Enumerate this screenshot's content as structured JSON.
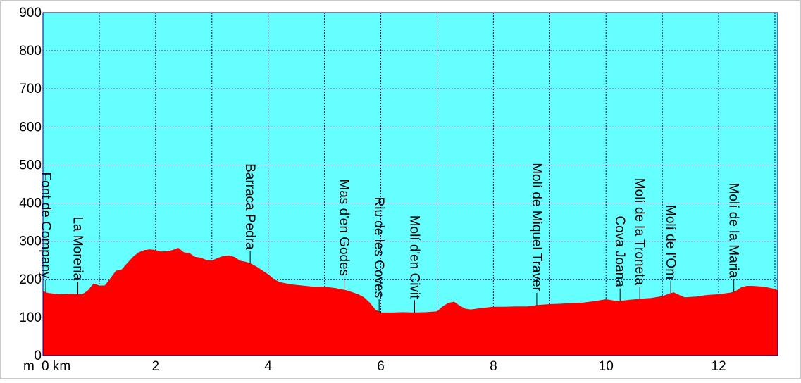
{
  "colors": {
    "background": "#66ffff",
    "fill": "#ff0000",
    "grid": "#000080",
    "frame_outer": "#c8c8c8"
  },
  "chart_data": {
    "type": "area",
    "xlabel": "km",
    "ylabel": "m",
    "xlim": [
      0,
      13.05
    ],
    "ylim": [
      0,
      900
    ],
    "grid": true,
    "xticks": [
      0,
      2,
      4,
      6,
      8,
      10,
      12
    ],
    "xtick_labels": [
      "0 km",
      "2",
      "4",
      "6",
      "8",
      "10",
      "12"
    ],
    "yticks": [
      0,
      100,
      200,
      300,
      400,
      500,
      600,
      700,
      800,
      900
    ],
    "ytick_labels": [
      "0",
      "100",
      "200",
      "300",
      "400",
      "500",
      "600",
      "700",
      "800",
      "900"
    ],
    "series": [
      {
        "x": [
          0,
          0.1,
          0.3,
          0.5,
          0.7,
          0.8,
          0.9,
          1.0,
          1.1,
          1.2,
          1.3,
          1.4,
          1.5,
          1.6,
          1.7,
          1.8,
          1.9,
          2.0,
          2.1,
          2.2,
          2.3,
          2.4,
          2.5,
          2.6,
          2.7,
          2.8,
          2.9,
          3.0,
          3.1,
          3.2,
          3.3,
          3.4,
          3.5,
          3.6,
          3.7,
          3.8,
          3.9,
          4.0,
          4.1,
          4.2,
          4.4,
          4.6,
          4.8,
          5.0,
          5.2,
          5.4,
          5.6,
          5.7,
          5.8,
          5.9,
          6.0,
          6.2,
          6.4,
          6.6,
          6.8,
          7.0,
          7.1,
          7.2,
          7.3,
          7.4,
          7.5,
          7.6,
          7.8,
          8.0,
          8.2,
          8.4,
          8.6,
          8.8,
          9.0,
          9.2,
          9.4,
          9.6,
          9.8,
          10.0,
          10.2,
          10.4,
          10.6,
          10.8,
          11.0,
          11.1,
          11.2,
          11.3,
          11.4,
          11.6,
          11.8,
          12.0,
          12.2,
          12.3,
          12.4,
          12.5,
          12.6,
          12.8,
          13.0,
          13.05
        ],
        "y": [
          168,
          163,
          160,
          161,
          160,
          170,
          188,
          183,
          183,
          202,
          222,
          225,
          242,
          258,
          270,
          276,
          278,
          276,
          272,
          273,
          276,
          282,
          270,
          268,
          258,
          256,
          250,
          248,
          255,
          260,
          262,
          258,
          248,
          245,
          240,
          232,
          222,
          212,
          200,
          192,
          186,
          183,
          180,
          180,
          176,
          170,
          160,
          152,
          138,
          120,
          112,
          112,
          113,
          112,
          113,
          115,
          128,
          137,
          140,
          130,
          122,
          120,
          124,
          127,
          127,
          128,
          128,
          132,
          134,
          135,
          137,
          138,
          142,
          147,
          142,
          145,
          148,
          150,
          155,
          160,
          165,
          158,
          152,
          154,
          158,
          160,
          164,
          168,
          178,
          182,
          182,
          180,
          174,
          170
        ]
      }
    ],
    "annotations": [
      {
        "x": 0.05,
        "label": "Font de Company"
      },
      {
        "x": 0.62,
        "label": "La Moreria"
      },
      {
        "x": 3.68,
        "label": "Barraca Pedra"
      },
      {
        "x": 5.35,
        "label": "Mas d'en Godes"
      },
      {
        "x": 5.97,
        "label": "Riu de les Coves"
      },
      {
        "x": 6.6,
        "label": "Molí d'en Civit"
      },
      {
        "x": 8.77,
        "label": "Molí de Miquel Traver"
      },
      {
        "x": 10.25,
        "label": "Cova Joana"
      },
      {
        "x": 10.6,
        "label": "Molí de la Troneta"
      },
      {
        "x": 11.15,
        "label": "Molí de l'Om"
      },
      {
        "x": 12.27,
        "label": "Molí de la Maria"
      }
    ]
  }
}
